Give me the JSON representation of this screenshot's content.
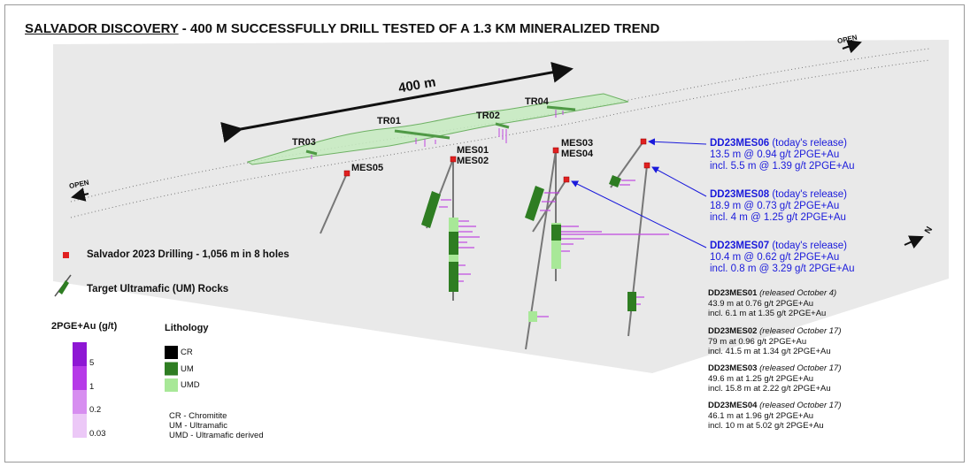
{
  "title": {
    "underlined": "SALVADOR DISCOVERY",
    "rest": " - 400 M SUCCESSFULLY DRILL TESTED OF A 1.3 KM MINERALIZED TREND"
  },
  "scale_label": "400 m",
  "open_left": "OPEN",
  "open_right": "OPEN",
  "north_label": "N",
  "trenches": [
    "TR01",
    "TR02",
    "TR03",
    "TR04"
  ],
  "holes": [
    "MES01",
    "MES02",
    "MES03",
    "MES04",
    "MES05"
  ],
  "legend": {
    "drilling": "Salvador 2023 Drilling - 1,056 m in 8 holes",
    "um_rocks": "Target Ultramafic (UM) Rocks",
    "grade_title": "2PGE+Au (g/t)",
    "grade_bins": [
      "5",
      "1",
      "0.2",
      "0.03"
    ],
    "grade_colors": [
      "#8e17d4",
      "#b63ae8",
      "#d78ef0",
      "#ecc8f7"
    ],
    "lith_title": "Lithology",
    "lith_items": [
      {
        "code": "CR",
        "color": "#000000"
      },
      {
        "code": "UM",
        "color": "#2e7d22"
      },
      {
        "code": "UMD",
        "color": "#a8e898"
      }
    ],
    "lith_notes": [
      "CR - Chromitite",
      "UM - Ultramafic",
      "UMD - Ultramafic derived"
    ]
  },
  "highlights": [
    {
      "hole": "DD23MES06",
      "note": " (today's release)",
      "l1": "13.5 m @ 0.94 g/t 2PGE+Au",
      "l2": "incl. 5.5 m @ 1.39 g/t 2PGE+Au"
    },
    {
      "hole": "DD23MES08",
      "note": " (today's release)",
      "l1": "18.9 m @ 0.73 g/t 2PGE+Au",
      "l2": "incl. 4 m @ 1.25 g/t 2PGE+Au"
    },
    {
      "hole": "DD23MES07",
      "note": " (today's release)",
      "l1": "10.4 m @ 0.62 g/t 2PGE+Au",
      "l2": "incl. 0.8 m @ 3.29 g/t 2PGE+Au"
    }
  ],
  "previous": [
    {
      "hole": "DD23MES01",
      "note": " (released October 4)",
      "l1": "43.9 m at 0.76 g/t 2PGE+Au",
      "l2": "incl. 6.1 m at 1.35 g/t 2PGE+Au"
    },
    {
      "hole": "DD23MES02",
      "note": " (released October 17)",
      "l1": "79 m at 0.96 g/t 2PGE+Au",
      "l2": "incl. 41.5 m at 1.34 g/t 2PGE+Au"
    },
    {
      "hole": "DD23MES03",
      "note": " (released October 17)",
      "l1": "49.6 m at 1.25 g/t 2PGE+Au",
      "l2": "incl. 15.8 m at 2.22 g/t 2PGE+Au"
    },
    {
      "hole": "DD23MES04",
      "note": " (released October 17)",
      "l1": "46.1 m at 1.96 g/t 2PGE+Au",
      "l2": "incl. 10 m at 5.02 g/t 2PGE+Au"
    }
  ]
}
